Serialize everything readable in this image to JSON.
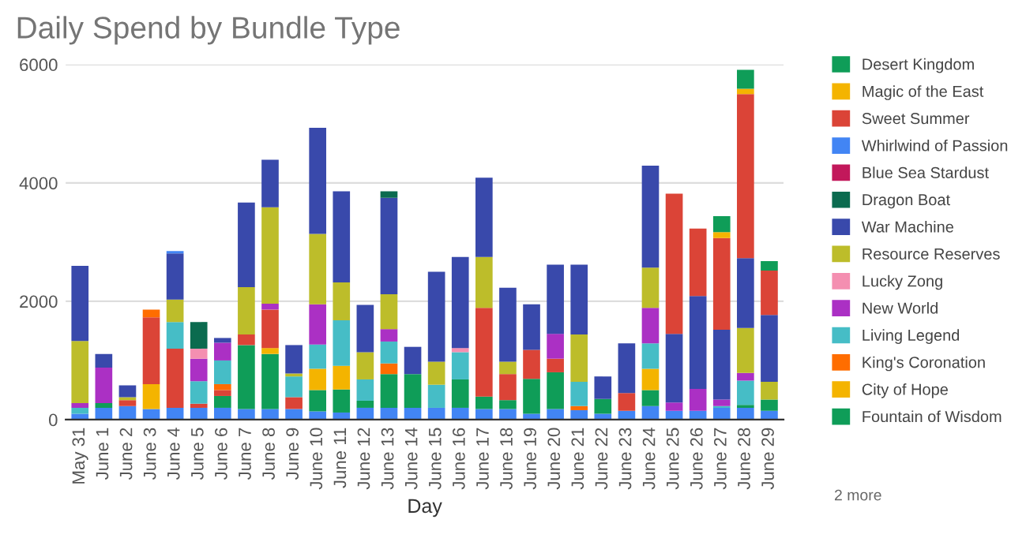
{
  "chart_data": {
    "type": "bar",
    "title": "Daily Spend by Bundle Type",
    "xlabel": "Day",
    "stacked": true,
    "categories": [
      "May 31",
      "June 1",
      "June 2",
      "June 3",
      "June 4",
      "June 5",
      "June 6",
      "June 7",
      "June 8",
      "June 9",
      "June 10",
      "June 11",
      "June 12",
      "June 13",
      "June 14",
      "June 15",
      "June 16",
      "June 17",
      "June 18",
      "June 19",
      "June 20",
      "June 21",
      "June 22",
      "June 23",
      "June 24",
      "June 25",
      "June 26",
      "June 27",
      "June 28",
      "June 29"
    ],
    "series": [
      {
        "color": "#4285f4",
        "values": [
          100,
          200,
          230,
          180,
          200,
          200,
          200,
          180,
          180,
          180,
          140,
          120,
          200,
          200,
          200,
          200,
          200,
          180,
          180,
          100,
          180,
          160,
          100,
          150,
          230,
          150,
          150,
          200,
          200,
          150
        ]
      },
      {
        "name": "Fountain of Wisdom",
        "color": "#0f9d58",
        "values": [
          0,
          80,
          0,
          0,
          0,
          0,
          200,
          1080,
          930,
          0,
          360,
          390,
          120,
          570,
          570,
          0,
          480,
          210,
          150,
          590,
          620,
          0,
          250,
          0,
          270,
          0,
          0,
          0,
          50,
          190
        ]
      },
      {
        "name": "City of Hope",
        "color": "#f4b400",
        "values": [
          0,
          0,
          0,
          420,
          0,
          0,
          0,
          0,
          100,
          0,
          360,
          400,
          0,
          0,
          0,
          0,
          0,
          0,
          0,
          0,
          0,
          0,
          0,
          0,
          360,
          0,
          0,
          0,
          0,
          0
        ]
      },
      {
        "color": "#db4437",
        "values": [
          0,
          0,
          100,
          1130,
          1000,
          70,
          100,
          180,
          650,
          200,
          0,
          0,
          0,
          0,
          0,
          0,
          0,
          1500,
          440,
          490,
          230,
          0,
          0,
          300,
          0,
          0,
          0,
          0,
          0,
          0
        ]
      },
      {
        "name": "King's Coronation",
        "color": "#ff6d00",
        "values": [
          0,
          0,
          0,
          130,
          0,
          0,
          100,
          0,
          0,
          0,
          0,
          0,
          0,
          180,
          0,
          0,
          0,
          0,
          0,
          0,
          0,
          70,
          0,
          0,
          0,
          0,
          0,
          0,
          0,
          0
        ]
      },
      {
        "name": "Living Legend",
        "color": "#46bdc6",
        "values": [
          100,
          0,
          0,
          0,
          450,
          380,
          400,
          0,
          0,
          350,
          410,
          770,
          360,
          370,
          0,
          390,
          460,
          0,
          0,
          0,
          0,
          410,
          0,
          0,
          430,
          0,
          0,
          30,
          410,
          0
        ]
      },
      {
        "name": "New World",
        "color": "#ab30c4",
        "values": [
          80,
          600,
          0,
          0,
          0,
          380,
          300,
          0,
          100,
          0,
          680,
          0,
          0,
          210,
          0,
          0,
          0,
          0,
          0,
          0,
          420,
          0,
          0,
          0,
          600,
          140,
          370,
          110,
          130,
          0
        ]
      },
      {
        "name": "Lucky Zong",
        "color": "#f48fb1",
        "values": [
          0,
          0,
          0,
          0,
          0,
          170,
          0,
          0,
          0,
          0,
          0,
          0,
          0,
          0,
          0,
          0,
          70,
          0,
          0,
          0,
          0,
          0,
          0,
          0,
          0,
          0,
          0,
          0,
          0,
          0
        ]
      },
      {
        "name": "Resource Reserves",
        "color": "#bdbd2a",
        "values": [
          1050,
          0,
          50,
          0,
          380,
          0,
          0,
          800,
          1630,
          50,
          1190,
          640,
          460,
          590,
          0,
          390,
          0,
          860,
          210,
          0,
          0,
          800,
          0,
          0,
          680,
          0,
          0,
          0,
          760,
          300
        ]
      },
      {
        "name": "War Machine",
        "color": "#3949ab",
        "values": [
          1270,
          230,
          200,
          0,
          780,
          0,
          80,
          1430,
          800,
          480,
          1790,
          1540,
          800,
          1630,
          460,
          1520,
          1540,
          1340,
          1250,
          770,
          1170,
          1180,
          380,
          840,
          1720,
          1160,
          1570,
          1180,
          1180,
          1130
        ]
      },
      {
        "name": "Dragon Boat",
        "color": "#0b6b4f",
        "values": [
          0,
          0,
          0,
          0,
          0,
          450,
          0,
          0,
          0,
          0,
          0,
          0,
          0,
          110,
          0,
          0,
          0,
          0,
          0,
          0,
          0,
          0,
          0,
          0,
          0,
          0,
          0,
          0,
          0,
          0
        ]
      },
      {
        "name": "Blue Sea Stardust",
        "color": "#c2185b",
        "values": [
          0,
          0,
          0,
          0,
          0,
          0,
          0,
          0,
          0,
          0,
          0,
          0,
          0,
          0,
          0,
          0,
          0,
          0,
          0,
          0,
          0,
          0,
          0,
          0,
          0,
          0,
          0,
          0,
          0,
          0
        ]
      },
      {
        "name": "Whirlwind of Passion",
        "color": "#4285f4",
        "values": [
          0,
          0,
          0,
          0,
          40,
          0,
          0,
          0,
          0,
          0,
          0,
          0,
          0,
          0,
          0,
          0,
          0,
          0,
          0,
          0,
          0,
          0,
          0,
          0,
          0,
          0,
          0,
          0,
          0,
          0
        ]
      },
      {
        "name": "Sweet Summer",
        "color": "#db4437",
        "values": [
          0,
          0,
          0,
          0,
          0,
          0,
          0,
          0,
          0,
          0,
          0,
          0,
          0,
          0,
          0,
          0,
          0,
          0,
          0,
          0,
          0,
          0,
          0,
          0,
          0,
          2370,
          1140,
          1550,
          2770,
          750
        ]
      },
      {
        "name": "Magic of the East",
        "color": "#f4b400",
        "values": [
          0,
          0,
          0,
          0,
          0,
          0,
          0,
          0,
          0,
          0,
          0,
          0,
          0,
          0,
          0,
          0,
          0,
          0,
          0,
          0,
          0,
          0,
          0,
          0,
          0,
          0,
          0,
          100,
          90,
          0
        ]
      },
      {
        "name": "Desert Kingdom",
        "color": "#0f9d58",
        "values": [
          0,
          0,
          0,
          0,
          0,
          0,
          0,
          0,
          0,
          0,
          0,
          0,
          0,
          0,
          0,
          0,
          0,
          0,
          0,
          0,
          0,
          0,
          0,
          0,
          0,
          0,
          0,
          270,
          320,
          160
        ]
      }
    ],
    "ylim": [
      0,
      6000
    ],
    "yticks": [
      0,
      2000,
      4000,
      6000
    ],
    "grid": "y",
    "legend": "right",
    "annotations": [
      "2 more"
    ]
  }
}
